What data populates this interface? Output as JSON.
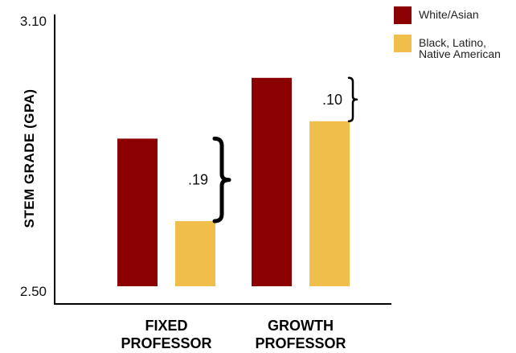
{
  "chart_data": {
    "type": "bar",
    "categories": [
      [
        "FIXED",
        "PROFESSOR"
      ],
      [
        "GROWTH",
        "PROFESSOR"
      ]
    ],
    "series": [
      {
        "name": "White/Asian",
        "color": "#8b0000",
        "values": [
          2.84,
          2.98
        ]
      },
      {
        "name": [
          "Black, Latino,",
          "Native American"
        ],
        "color": "#f0bf4b",
        "values": [
          2.65,
          2.88
        ]
      }
    ],
    "ylabel": "STEM GRADE (GPA)",
    "yticks": [
      "3.10",
      "2.50"
    ],
    "ylim": [
      2.5,
      3.1
    ],
    "gaps": [
      ".19",
      ".10"
    ],
    "legend_position": "top-right",
    "grid": false
  }
}
